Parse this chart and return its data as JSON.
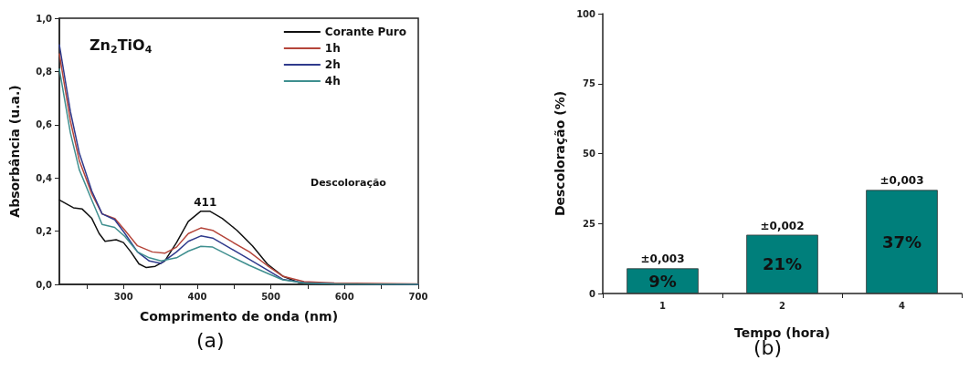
{
  "chart_data": [
    {
      "type": "line",
      "title": "Zn$_{2}$TiO$_{4}$",
      "xlabel": "Comprimento de onda (nm)",
      "ylabel": "Absorbância (u.a.)",
      "xlim": [
        213,
        700
      ],
      "xticks": [
        {
          "value": 250,
          "label": null
        },
        300,
        {
          "value": 350,
          "label": null
        },
        400,
        {
          "value": 450,
          "label": null
        },
        500,
        {
          "value": 550,
          "label": null
        },
        600,
        {
          "value": 650,
          "label": null
        },
        700
      ],
      "ylim": [
        0,
        1
      ],
      "yticks": [
        {
          "value": 0,
          "label": "0,0"
        },
        {
          "value": 0.2,
          "label": "0,2"
        },
        {
          "value": 0.4,
          "label": "0,4"
        },
        {
          "value": 0.6,
          "label": "0,6"
        },
        {
          "value": 0.8,
          "label": "0,8"
        },
        {
          "value": 1,
          "label": "1,0"
        }
      ],
      "grid": false,
      "legend": "top right",
      "marker": "none",
      "line_style": "solid",
      "series": [
        {
          "name": "Corante Puro",
          "color": "#111111",
          "x": [
            213,
            232,
            244,
            257,
            267,
            275,
            290,
            300,
            310,
            321,
            331,
            343,
            356,
            372,
            388,
            405,
            417,
            434,
            454,
            475,
            495,
            516,
            537,
            565,
            600,
            700
          ],
          "values": [
            0.317,
            0.288,
            0.283,
            0.248,
            0.191,
            0.162,
            0.168,
            0.157,
            0.122,
            0.077,
            0.063,
            0.068,
            0.088,
            0.157,
            0.237,
            0.275,
            0.275,
            0.248,
            0.203,
            0.145,
            0.077,
            0.031,
            0.008,
            0.002,
            0.0,
            0.0
          ]
        },
        {
          "name": "1h",
          "color": "#b5453a",
          "x": [
            213,
            228,
            240,
            257,
            271,
            288,
            302,
            319,
            339,
            356,
            372,
            388,
            405,
            421,
            446,
            471,
            495,
            516,
            545,
            586,
            700
          ],
          "values": [
            0.866,
            0.614,
            0.466,
            0.34,
            0.265,
            0.248,
            0.203,
            0.145,
            0.122,
            0.117,
            0.14,
            0.191,
            0.212,
            0.203,
            0.162,
            0.122,
            0.071,
            0.031,
            0.01,
            0.005,
            0.002
          ]
        },
        {
          "name": "2h",
          "color": "#2f3a8c",
          "x": [
            213,
            228,
            240,
            257,
            271,
            288,
            302,
            319,
            335,
            351,
            372,
            388,
            405,
            421,
            446,
            471,
            495,
            516,
            545,
            586,
            700
          ],
          "values": [
            0.9,
            0.649,
            0.494,
            0.351,
            0.265,
            0.243,
            0.191,
            0.122,
            0.088,
            0.079,
            0.122,
            0.162,
            0.182,
            0.174,
            0.134,
            0.094,
            0.054,
            0.019,
            0.006,
            0.002,
            0.0
          ]
        },
        {
          "name": "4h",
          "color": "#3f8f8f",
          "x": [
            213,
            228,
            240,
            257,
            271,
            288,
            302,
            319,
            335,
            351,
            372,
            388,
            405,
            421,
            446,
            471,
            495,
            516,
            545,
            586,
            700
          ],
          "values": [
            0.809,
            0.569,
            0.431,
            0.317,
            0.225,
            0.214,
            0.18,
            0.122,
            0.1,
            0.088,
            0.1,
            0.125,
            0.143,
            0.14,
            0.105,
            0.071,
            0.042,
            0.017,
            0.005,
            0.002,
            0.0
          ]
        }
      ],
      "annotations": [
        {
          "text": "411",
          "x": 411,
          "y": 0.275
        },
        "Descoloração",
        "(a)"
      ]
    },
    {
      "type": "bar",
      "xlabel": "Tempo (hora)",
      "ylabel": "Descoloração (%)",
      "categories": [
        "1",
        "2",
        "4"
      ],
      "values": [
        9,
        21,
        37
      ],
      "value_labels": [
        "9%",
        "21%",
        "37%"
      ],
      "color": "#007f7b",
      "ylim": [
        0,
        100
      ],
      "yticks": [
        0,
        25,
        50,
        75,
        100
      ],
      "grid": false,
      "legend": false,
      "annotations": [
        {
          "text": "±0,003",
          "x": "1",
          "y": 9
        },
        {
          "text": "±0,002",
          "x": "2",
          "y": 21
        },
        {
          "text": "±0,003",
          "x": "4",
          "y": 37
        },
        "(b)"
      ]
    }
  ]
}
